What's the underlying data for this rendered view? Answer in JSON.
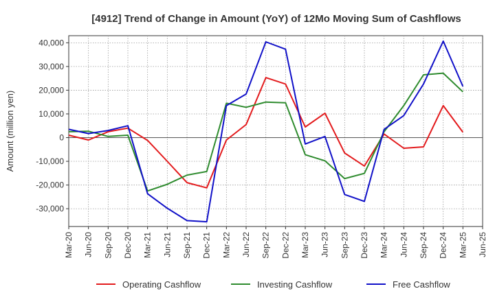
{
  "chart_data": {
    "type": "line",
    "title": "[4912]  Trend of Change in Amount (YoY) of 12Mo Moving Sum of Cashflows",
    "xlabel": "",
    "ylabel": "Amount (million yen)",
    "ylim": [
      -37500,
      43000
    ],
    "yticks": [
      -30000,
      -20000,
      -10000,
      0,
      10000,
      20000,
      30000,
      40000
    ],
    "ytick_labels": [
      "-30,000",
      "-20,000",
      "-10,000",
      "0",
      "10,000",
      "20,000",
      "30,000",
      "40,000"
    ],
    "categories": [
      "Mar-20",
      "Jun-20",
      "Sep-20",
      "Dec-20",
      "Mar-21",
      "Jun-21",
      "Sep-21",
      "Dec-21",
      "Mar-22",
      "Jun-22",
      "Sep-22",
      "Dec-22",
      "Mar-23",
      "Jun-23",
      "Sep-23",
      "Dec-23",
      "Mar-24",
      "Jun-24",
      "Sep-24",
      "Dec-24",
      "Mar-25",
      "Jun-25"
    ],
    "grid": true,
    "legend_position": "bottom",
    "series": [
      {
        "name": "Operating Cashflow",
        "color": "#e31a1c",
        "values": [
          1000,
          -1000,
          2500,
          4000,
          -1200,
          -10000,
          -19000,
          -21200,
          -1000,
          5500,
          25300,
          22600,
          4500,
          10300,
          -6500,
          -12000,
          1500,
          -4500,
          -3900,
          13500,
          2300,
          null
        ]
      },
      {
        "name": "Investing Cashflow",
        "color": "#2e8b2e",
        "values": [
          2500,
          2700,
          500,
          1000,
          -22500,
          -19700,
          -15800,
          -14300,
          14500,
          12800,
          15000,
          14700,
          -7200,
          -9800,
          -17300,
          -15100,
          2500,
          13500,
          26500,
          27200,
          19300,
          null
        ]
      },
      {
        "name": "Free Cashflow",
        "color": "#1010c8",
        "values": [
          3500,
          1700,
          3000,
          5000,
          -23700,
          -29800,
          -35000,
          -35500,
          13500,
          18400,
          40400,
          37300,
          -2700,
          500,
          -24000,
          -26900,
          3500,
          9300,
          22600,
          40700,
          21600,
          null
        ]
      }
    ]
  }
}
